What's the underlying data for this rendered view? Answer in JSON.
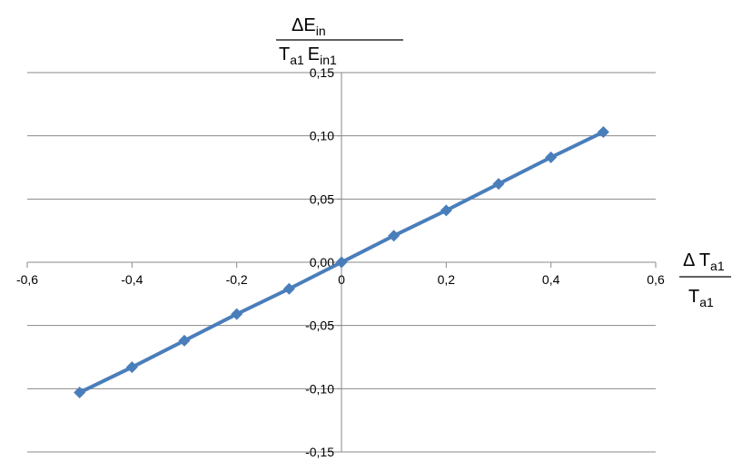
{
  "chart_data": {
    "type": "line",
    "x": [
      -0.5,
      -0.4,
      -0.3,
      -0.2,
      -0.1,
      0.0,
      0.1,
      0.2,
      0.3,
      0.4,
      0.5
    ],
    "series": [
      {
        "values": [
          -0.103,
          -0.083,
          -0.062,
          -0.041,
          -0.021,
          0.0,
          0.021,
          0.041,
          0.062,
          0.083,
          0.103
        ],
        "color": "#4a7ebb",
        "marker": "diamond"
      }
    ],
    "xlim": [
      -0.6,
      0.6
    ],
    "ylim": [
      -0.15,
      0.15
    ],
    "x_ticks": [
      -0.6,
      -0.4,
      -0.2,
      0,
      0.2,
      0.4,
      0.6
    ],
    "x_tick_labels": [
      "-0,6",
      "-0,4",
      "-0,2",
      "0",
      "0,2",
      "0,4",
      "0,6"
    ],
    "y_ticks": [
      0.15,
      0.1,
      0.05,
      0.0,
      -0.05,
      -0.1,
      -0.15
    ],
    "y_tick_labels": [
      "0,15",
      "0,10",
      "0,05",
      "0,00",
      "-0,05",
      "-0,10",
      "-0,15"
    ],
    "grid": "horizontal",
    "axes_through_origin": true,
    "ylabel": {
      "numerator": "ΔE",
      "numerator_sub": "in",
      "denominator_a": "T",
      "denominator_a_sub": "a1",
      "denominator_b": "E",
      "denominator_b_sub": "in1"
    },
    "xlabel": {
      "numerator": "Δ T",
      "numerator_sub": "a1",
      "denominator": "T",
      "denominator_sub": "a1"
    }
  }
}
